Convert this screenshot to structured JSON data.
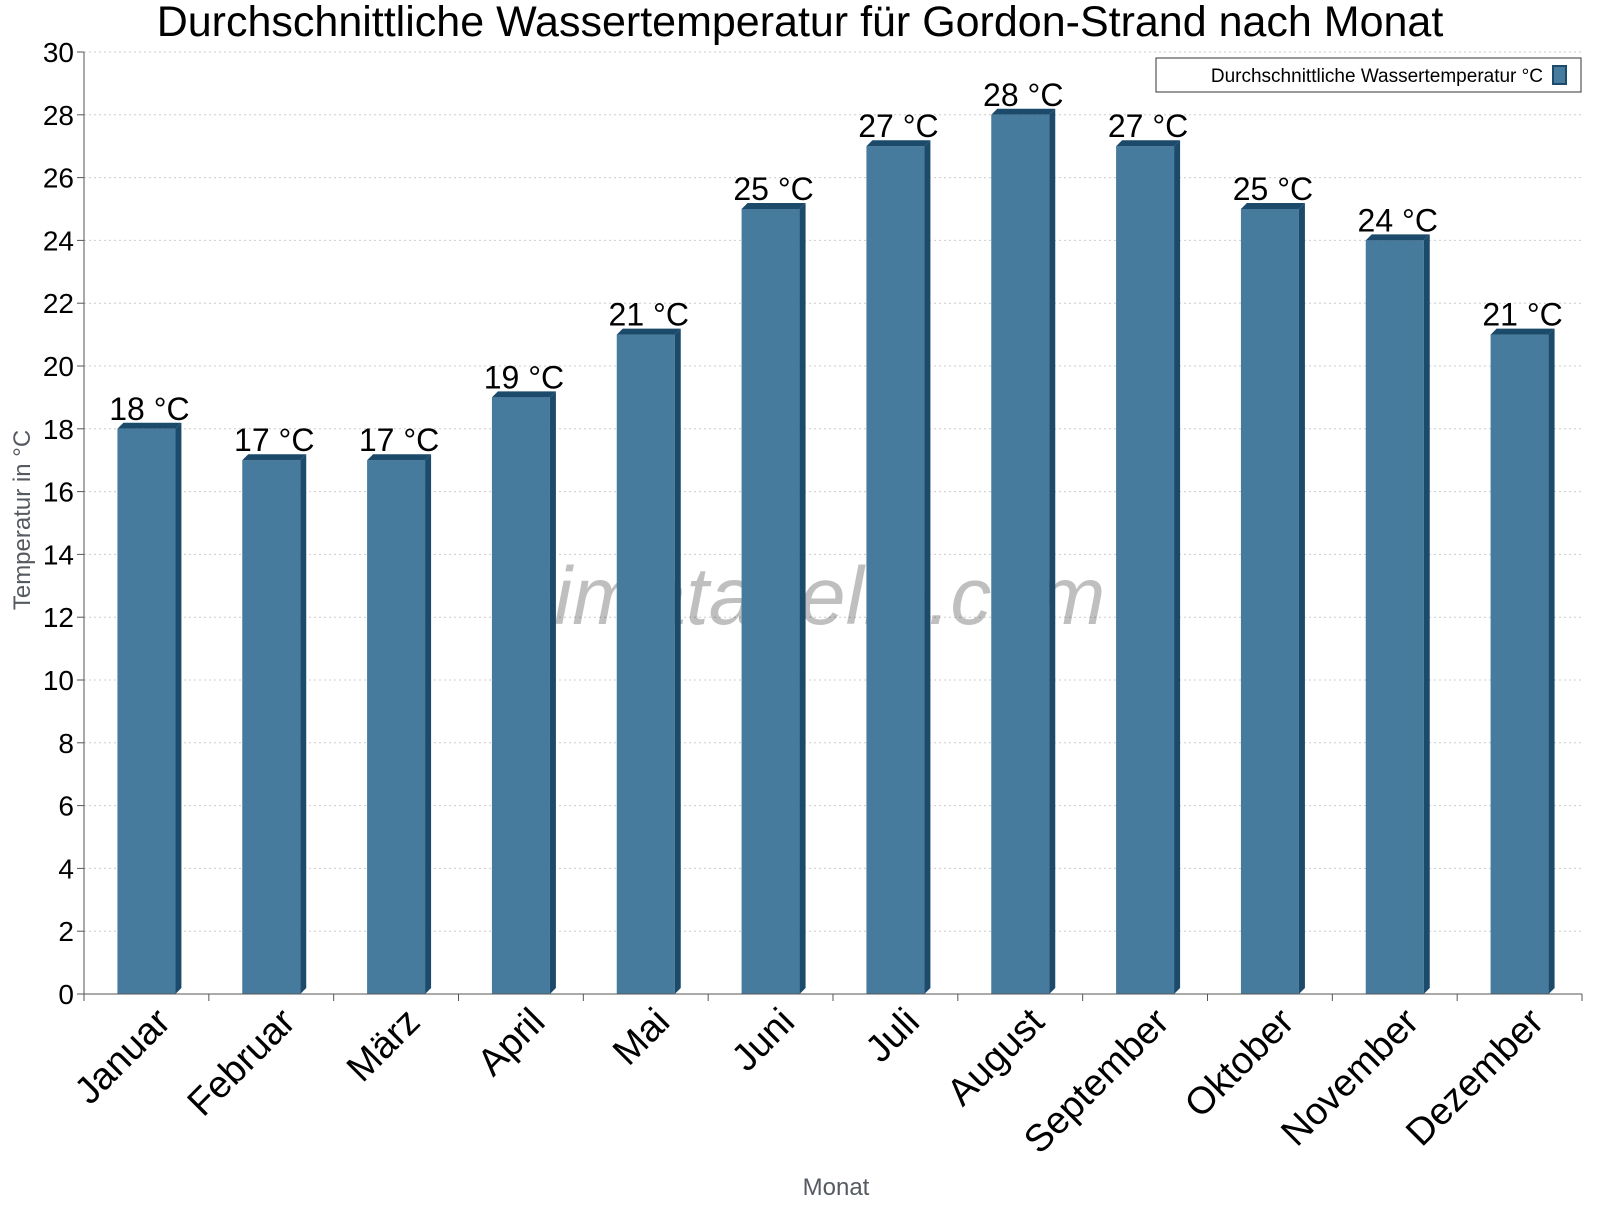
{
  "chart_data": {
    "type": "bar",
    "title": "Durchschnittliche Wassertemperatur für Gordon-Strand nach Monat",
    "xlabel": "Monat",
    "ylabel": "Temperatur in °C",
    "categories": [
      "Januar",
      "Februar",
      "März",
      "April",
      "Mai",
      "Juni",
      "Juli",
      "August",
      "September",
      "Oktober",
      "November",
      "Dezember"
    ],
    "series": [
      {
        "name": "Durchschnittliche Wassertemperatur °C",
        "values": [
          18,
          17,
          17,
          19,
          21,
          25,
          27,
          28,
          27,
          25,
          24,
          21
        ],
        "value_labels": [
          "18 °C",
          "17 °C",
          "17 °C",
          "19 °C",
          "21 °C",
          "25 °C",
          "27 °C",
          "28 °C",
          "27 °C",
          "25 °C",
          "24 °C",
          "21 °C"
        ]
      }
    ],
    "ylim": [
      0,
      30
    ],
    "yticks": [
      "0",
      "2",
      "4",
      "6",
      "8",
      "10",
      "12",
      "14",
      "16",
      "18",
      "20",
      "22",
      "24",
      "26",
      "28",
      "30"
    ],
    "grid": true,
    "legend_position": "top-right",
    "watermark": "klimatabelle.com",
    "colors": {
      "bar_face": "#467b9d",
      "bar_dark": "#1c4a6b",
      "grid": "#cccccc",
      "axis": "#555555",
      "axis_title": "#555a60"
    }
  }
}
